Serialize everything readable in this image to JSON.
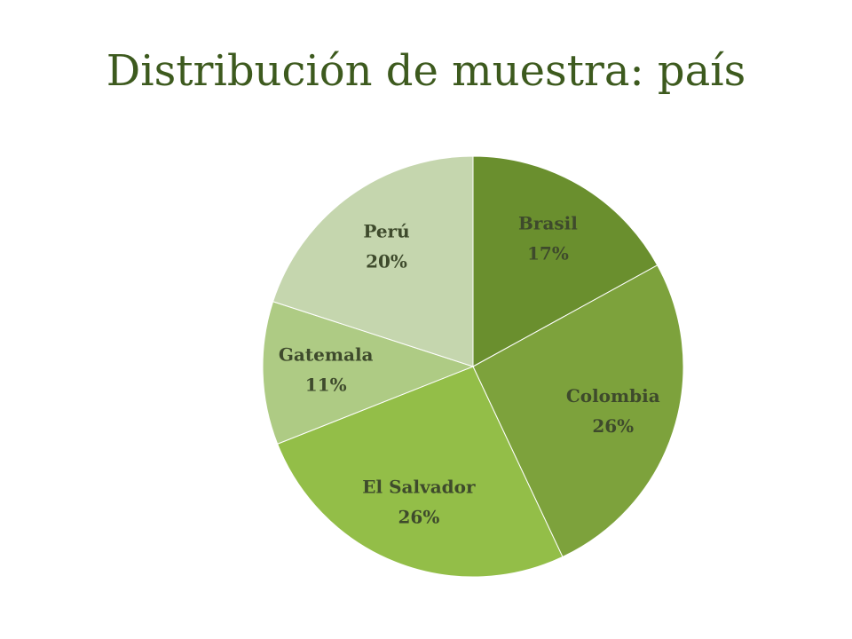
{
  "chart_data": {
    "type": "pie",
    "title": "Distribución de muestra: país",
    "categories": [
      "Brasil",
      "Colombia",
      "El Salvador",
      "Gatemala",
      "Perú"
    ],
    "values": [
      17,
      26,
      26,
      11,
      20
    ],
    "value_labels": [
      "17%",
      "26%",
      "26%",
      "11%",
      "20%"
    ],
    "colors": [
      "#6a8f2e",
      "#7da23c",
      "#93be48",
      "#aecb84",
      "#c5d6ae"
    ]
  }
}
